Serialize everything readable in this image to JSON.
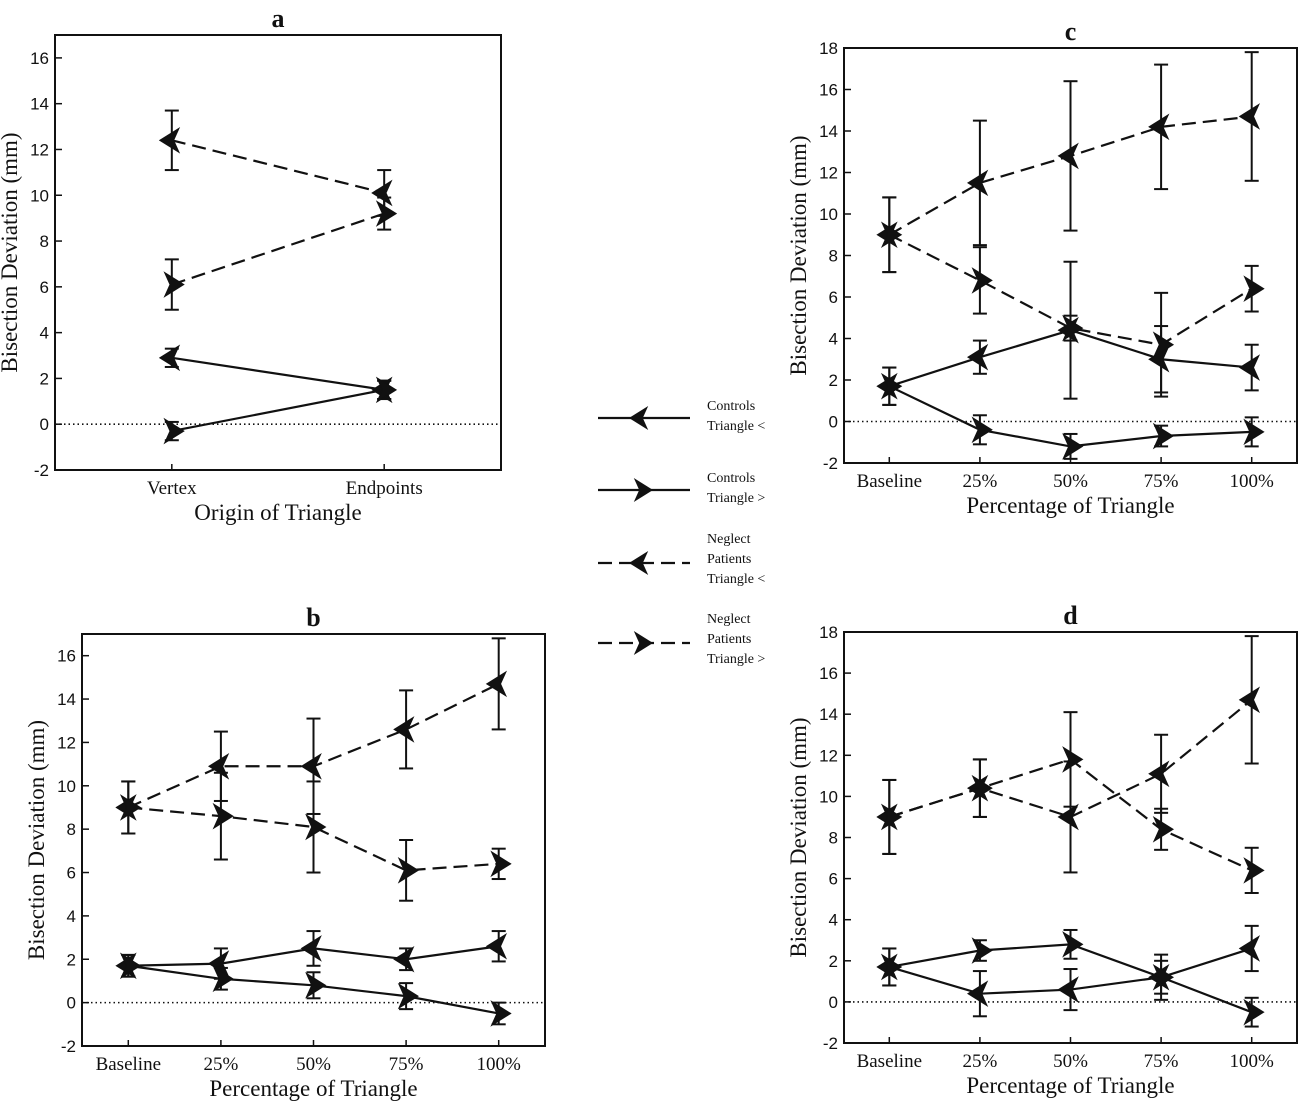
{
  "legend": [
    {
      "key": "ctrl_lt",
      "lines": [
        "Controls",
        "Triangle <"
      ],
      "dashed": false,
      "marker": "left"
    },
    {
      "key": "ctrl_gt",
      "lines": [
        "Controls",
        "Triangle >"
      ],
      "dashed": false,
      "marker": "right"
    },
    {
      "key": "neg_lt",
      "lines": [
        "Neglect",
        "Patients",
        "Triangle <"
      ],
      "dashed": true,
      "marker": "left"
    },
    {
      "key": "neg_gt",
      "lines": [
        "Neglect",
        "Patients",
        "Triangle >"
      ],
      "dashed": true,
      "marker": "right"
    }
  ],
  "chart_data": [
    {
      "panel": "a",
      "type": "line",
      "title": "a",
      "xlabel": "Origin of Triangle",
      "ylabel": "Bisection Deviation (mm)",
      "categories": [
        "Vertex",
        "Endpoints"
      ],
      "ylim": [
        -2,
        17
      ],
      "yticks": [
        -2,
        0,
        2,
        4,
        6,
        8,
        10,
        12,
        14,
        16
      ],
      "zero_line": "dotted",
      "series": [
        {
          "key": "ctrl_lt",
          "values": [
            2.9,
            1.5
          ],
          "err": [
            0.4,
            0.4
          ]
        },
        {
          "key": "ctrl_gt",
          "values": [
            -0.3,
            1.5
          ],
          "err": [
            0.4,
            0.4
          ]
        },
        {
          "key": "neg_lt",
          "values": [
            12.4,
            10.1
          ],
          "err": [
            1.3,
            1.0
          ]
        },
        {
          "key": "neg_gt",
          "values": [
            6.1,
            9.2
          ],
          "err": [
            1.1,
            0.7
          ]
        }
      ]
    },
    {
      "panel": "b",
      "type": "line",
      "title": "b",
      "xlabel": "Percentage of Triangle",
      "ylabel": "Bisection Deviation (mm)",
      "categories": [
        "Baseline",
        "25%",
        "50%",
        "75%",
        "100%"
      ],
      "ylim": [
        -2,
        17
      ],
      "yticks": [
        -2,
        0,
        2,
        4,
        6,
        8,
        10,
        12,
        14,
        16
      ],
      "zero_line": "dotted",
      "series": [
        {
          "key": "ctrl_lt",
          "values": [
            1.7,
            1.8,
            2.5,
            2.0,
            2.6
          ],
          "err": [
            0.5,
            0.7,
            0.8,
            0.5,
            0.7
          ]
        },
        {
          "key": "ctrl_gt",
          "values": [
            1.7,
            1.1,
            0.8,
            0.3,
            -0.5
          ],
          "err": [
            0.5,
            0.5,
            0.6,
            0.6,
            0.5
          ]
        },
        {
          "key": "neg_lt",
          "values": [
            9.0,
            10.9,
            10.9,
            12.6,
            14.7
          ],
          "err": [
            1.2,
            1.6,
            2.2,
            1.8,
            2.1
          ]
        },
        {
          "key": "neg_gt",
          "values": [
            9.0,
            8.6,
            8.1,
            6.1,
            6.4
          ],
          "err": [
            1.2,
            2.0,
            2.1,
            1.4,
            0.7
          ]
        }
      ]
    },
    {
      "panel": "c",
      "type": "line",
      "title": "c",
      "xlabel": "Percentage of Triangle",
      "ylabel": "Bisection Deviation (mm)",
      "categories": [
        "Baseline",
        "25%",
        "50%",
        "75%",
        "100%"
      ],
      "ylim": [
        -2,
        18
      ],
      "yticks": [
        -2,
        0,
        2,
        4,
        6,
        8,
        10,
        12,
        14,
        16,
        18
      ],
      "zero_line": "dotted",
      "series": [
        {
          "key": "ctrl_lt",
          "values": [
            1.7,
            3.1,
            4.4,
            3.0,
            2.6
          ],
          "err": [
            0.9,
            0.8,
            3.3,
            1.6,
            1.1
          ]
        },
        {
          "key": "ctrl_gt",
          "values": [
            1.7,
            -0.4,
            -1.2,
            -0.7,
            -0.5
          ],
          "err": [
            0.9,
            0.7,
            0.6,
            0.5,
            0.7
          ]
        },
        {
          "key": "neg_lt",
          "values": [
            9.0,
            11.5,
            12.8,
            14.2,
            14.7
          ],
          "err": [
            1.8,
            3.0,
            3.6,
            3.0,
            3.1
          ]
        },
        {
          "key": "neg_gt",
          "values": [
            9.0,
            6.8,
            4.5,
            3.7,
            6.4
          ],
          "err": [
            1.8,
            1.6,
            0.6,
            2.5,
            1.1
          ]
        }
      ]
    },
    {
      "panel": "d",
      "type": "line",
      "title": "d",
      "xlabel": "Percentage of Triangle",
      "ylabel": "Bisection Deviation (mm)",
      "categories": [
        "Baseline",
        "25%",
        "50%",
        "75%",
        "100%"
      ],
      "ylim": [
        -2,
        18
      ],
      "yticks": [
        -2,
        0,
        2,
        4,
        6,
        8,
        10,
        12,
        14,
        16,
        18
      ],
      "zero_line": "dotted",
      "series": [
        {
          "key": "ctrl_lt",
          "values": [
            1.7,
            0.4,
            0.6,
            1.2,
            2.6
          ],
          "err": [
            0.9,
            1.1,
            1.0,
            1.1,
            1.1
          ]
        },
        {
          "key": "ctrl_gt",
          "values": [
            1.7,
            2.5,
            2.8,
            1.2,
            -0.5
          ],
          "err": [
            0.9,
            0.5,
            0.7,
            0.8,
            0.7
          ]
        },
        {
          "key": "neg_lt",
          "values": [
            9.0,
            10.4,
            9.0,
            11.1,
            14.7
          ],
          "err": [
            1.8,
            1.4,
            2.7,
            1.9,
            3.1
          ]
        },
        {
          "key": "neg_gt",
          "values": [
            9.0,
            10.4,
            11.8,
            8.4,
            6.4
          ],
          "err": [
            1.8,
            1.4,
            2.3,
            1.0,
            1.1
          ]
        }
      ]
    }
  ]
}
